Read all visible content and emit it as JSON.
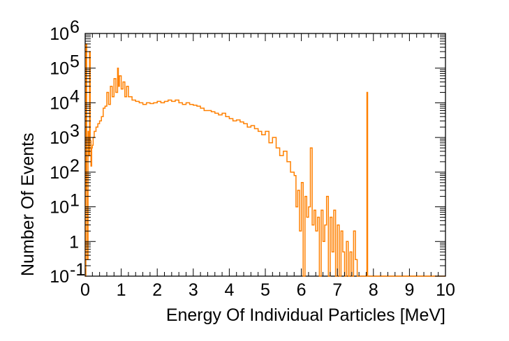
{
  "chart_data": {
    "type": "line",
    "title": "",
    "xlabel": "Energy Of Individual Particles [MeV]",
    "ylabel": "Number Of Events",
    "xlim": [
      0,
      10
    ],
    "ylim": [
      0.1,
      1000000
    ],
    "yscale": "log",
    "grid": false,
    "legend": "none",
    "color": "#ff8000",
    "x_ticks": [
      "0",
      "1",
      "2",
      "3",
      "4",
      "5",
      "6",
      "7",
      "8",
      "9",
      "10"
    ],
    "y_ticks": [
      {
        "base": "10",
        "exp": "-1",
        "value": 0.1
      },
      {
        "base": "1",
        "exp": "",
        "value": 1
      },
      {
        "base": "10",
        "exp": "1",
        "value": 10
      },
      {
        "base": "10",
        "exp": "2",
        "value": 100
      },
      {
        "base": "10",
        "exp": "3",
        "value": 1000
      },
      {
        "base": "10",
        "exp": "4",
        "value": 10000
      },
      {
        "base": "10",
        "exp": "5",
        "value": 100000
      },
      {
        "base": "10",
        "exp": "6",
        "value": 1000000
      }
    ],
    "series": [
      {
        "x": [
          0.0,
          0.02,
          0.04,
          0.06,
          0.08,
          0.1,
          0.12,
          0.14,
          0.16,
          0.18,
          0.2,
          0.22,
          0.25,
          0.3,
          0.35,
          0.4,
          0.45,
          0.5,
          0.55,
          0.6,
          0.65,
          0.7,
          0.75,
          0.8,
          0.85,
          0.9,
          0.92,
          0.95,
          1.0,
          1.05,
          1.1,
          1.15,
          1.2,
          1.3,
          1.4,
          1.5,
          1.6,
          1.7,
          1.8,
          1.9,
          2.0,
          2.1,
          2.2,
          2.3,
          2.4,
          2.5,
          2.6,
          2.7,
          2.8,
          2.9,
          3.0,
          3.1,
          3.2,
          3.3,
          3.4,
          3.5,
          3.6,
          3.7,
          3.8,
          3.9,
          4.0,
          4.1,
          4.2,
          4.3,
          4.4,
          4.5,
          4.6,
          4.7,
          4.8,
          4.9,
          5.0,
          5.1,
          5.2,
          5.3,
          5.4,
          5.5,
          5.6,
          5.7,
          5.8,
          5.85,
          5.9,
          5.95,
          6.0,
          6.05,
          6.1,
          6.15,
          6.2,
          6.25,
          6.3,
          6.35,
          6.4,
          6.45,
          6.5,
          6.55,
          6.6,
          6.65,
          6.7,
          6.75,
          6.8,
          6.85,
          6.9,
          6.95,
          7.0,
          7.05,
          7.1,
          7.15,
          7.2,
          7.25,
          7.3,
          7.35,
          7.4,
          7.45,
          7.5,
          7.55,
          7.6,
          7.65,
          7.7,
          7.75,
          7.8,
          7.82,
          7.84,
          7.9,
          8.0,
          9.0,
          10.0
        ],
        "y": [
          0.1,
          500000,
          30,
          0.3,
          1500,
          300,
          300000,
          800,
          150,
          500,
          600,
          1000,
          1500,
          2000,
          2500,
          3000,
          4000,
          7000,
          8000,
          20000,
          9000,
          30000,
          15000,
          50000,
          20000,
          100000,
          30000,
          60000,
          25000,
          40000,
          15000,
          30000,
          15000,
          12000,
          11000,
          10000,
          9000,
          10000,
          9500,
          10000,
          11000,
          10000,
          11000,
          12000,
          11000,
          12000,
          10000,
          9000,
          10000,
          9000,
          8500,
          8000,
          7000,
          6000,
          6000,
          5500,
          5000,
          4500,
          5000,
          4000,
          3500,
          3000,
          3200,
          2800,
          2500,
          2000,
          2200,
          1800,
          1500,
          1200,
          1500,
          700,
          1000,
          500,
          300,
          400,
          200,
          100,
          80,
          10,
          30,
          2,
          50,
          0.1,
          20,
          5,
          10,
          500,
          3,
          8,
          2,
          5,
          0.1,
          8,
          1,
          3,
          20,
          0.1,
          5,
          0.5,
          8,
          0.1,
          3,
          0.1,
          2,
          0.5,
          0.1,
          1,
          0.1,
          0.5,
          0.1,
          2,
          0.3,
          0.1,
          0.1,
          0.1,
          0.1,
          0.1,
          0.1,
          20000,
          0.1,
          0.1,
          0.1,
          0.1,
          0.1
        ]
      }
    ]
  }
}
